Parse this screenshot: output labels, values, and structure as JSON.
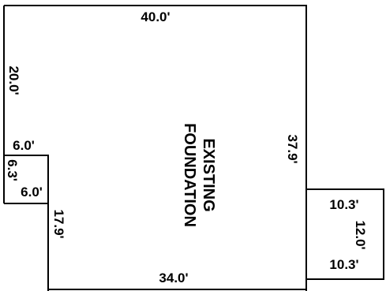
{
  "plan": {
    "main_label": [
      "EXISTING",
      "FOUNDATION"
    ],
    "dimensions": {
      "top": "40.0'",
      "left_upper": "20.0'",
      "bump_top": "6.0'",
      "bump_side": "6.3'",
      "bump_bottom": "6.0'",
      "left_lower": "17.9'",
      "right": "37.9'",
      "bottom": "34.0'",
      "annex_top": "10.3'",
      "annex_side": "12.0'",
      "annex_bottom": "10.3'"
    }
  }
}
